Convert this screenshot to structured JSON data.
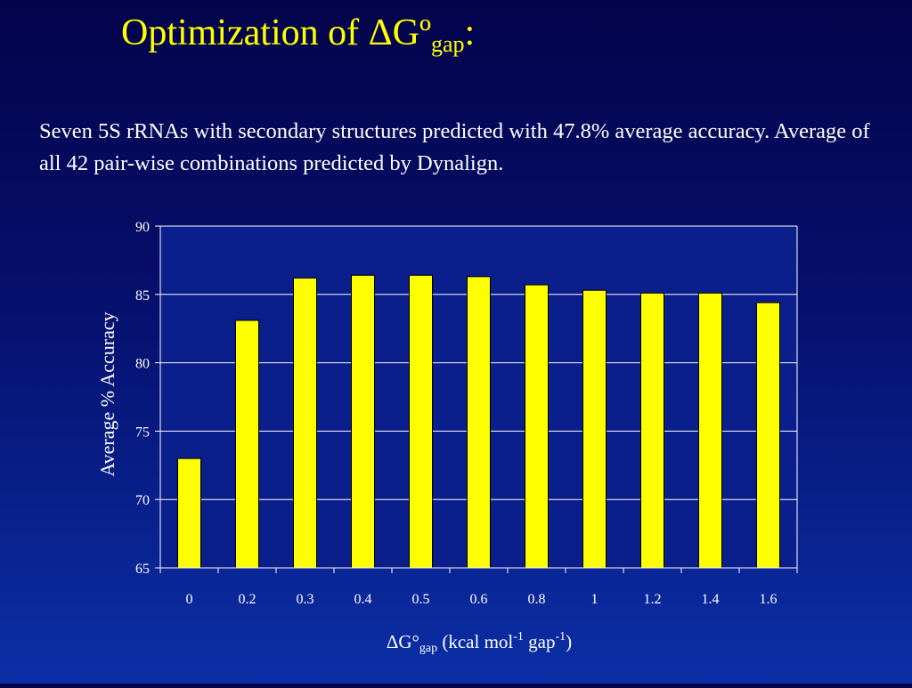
{
  "slide": {
    "title_main": "Optimization of ΔGº",
    "title_sub": "gap",
    "title_end": ":",
    "subtitle": "Seven 5S rRNAs  with secondary structures predicted with 47.8% average accuracy.  Average of all 42 pair-wise combinations predicted by Dynalign."
  },
  "chart_data": {
    "type": "bar",
    "categories": [
      "0",
      "0.2",
      "0.3",
      "0.4",
      "0.5",
      "0.6",
      "0.8",
      "1",
      "1.2",
      "1.4",
      "1.6"
    ],
    "values": [
      73.0,
      83.1,
      86.2,
      86.4,
      86.4,
      86.3,
      85.7,
      85.3,
      85.1,
      85.1,
      84.4
    ],
    "ylim": [
      65,
      90
    ],
    "yticks": [
      "65",
      "70",
      "75",
      "80",
      "85",
      "90"
    ],
    "ylabel": "Average % Accuracy",
    "xlabel": {
      "delta": "ΔG°",
      "sub": "gap",
      "text1": " (kcal mol",
      "sup1": "-1",
      "text2": " gap",
      "sup2": "-1",
      "text3": ")"
    },
    "grid": true,
    "bar_color": "#ffff00",
    "bar_edge_color": "#000000",
    "background": "#0a1e8c"
  }
}
